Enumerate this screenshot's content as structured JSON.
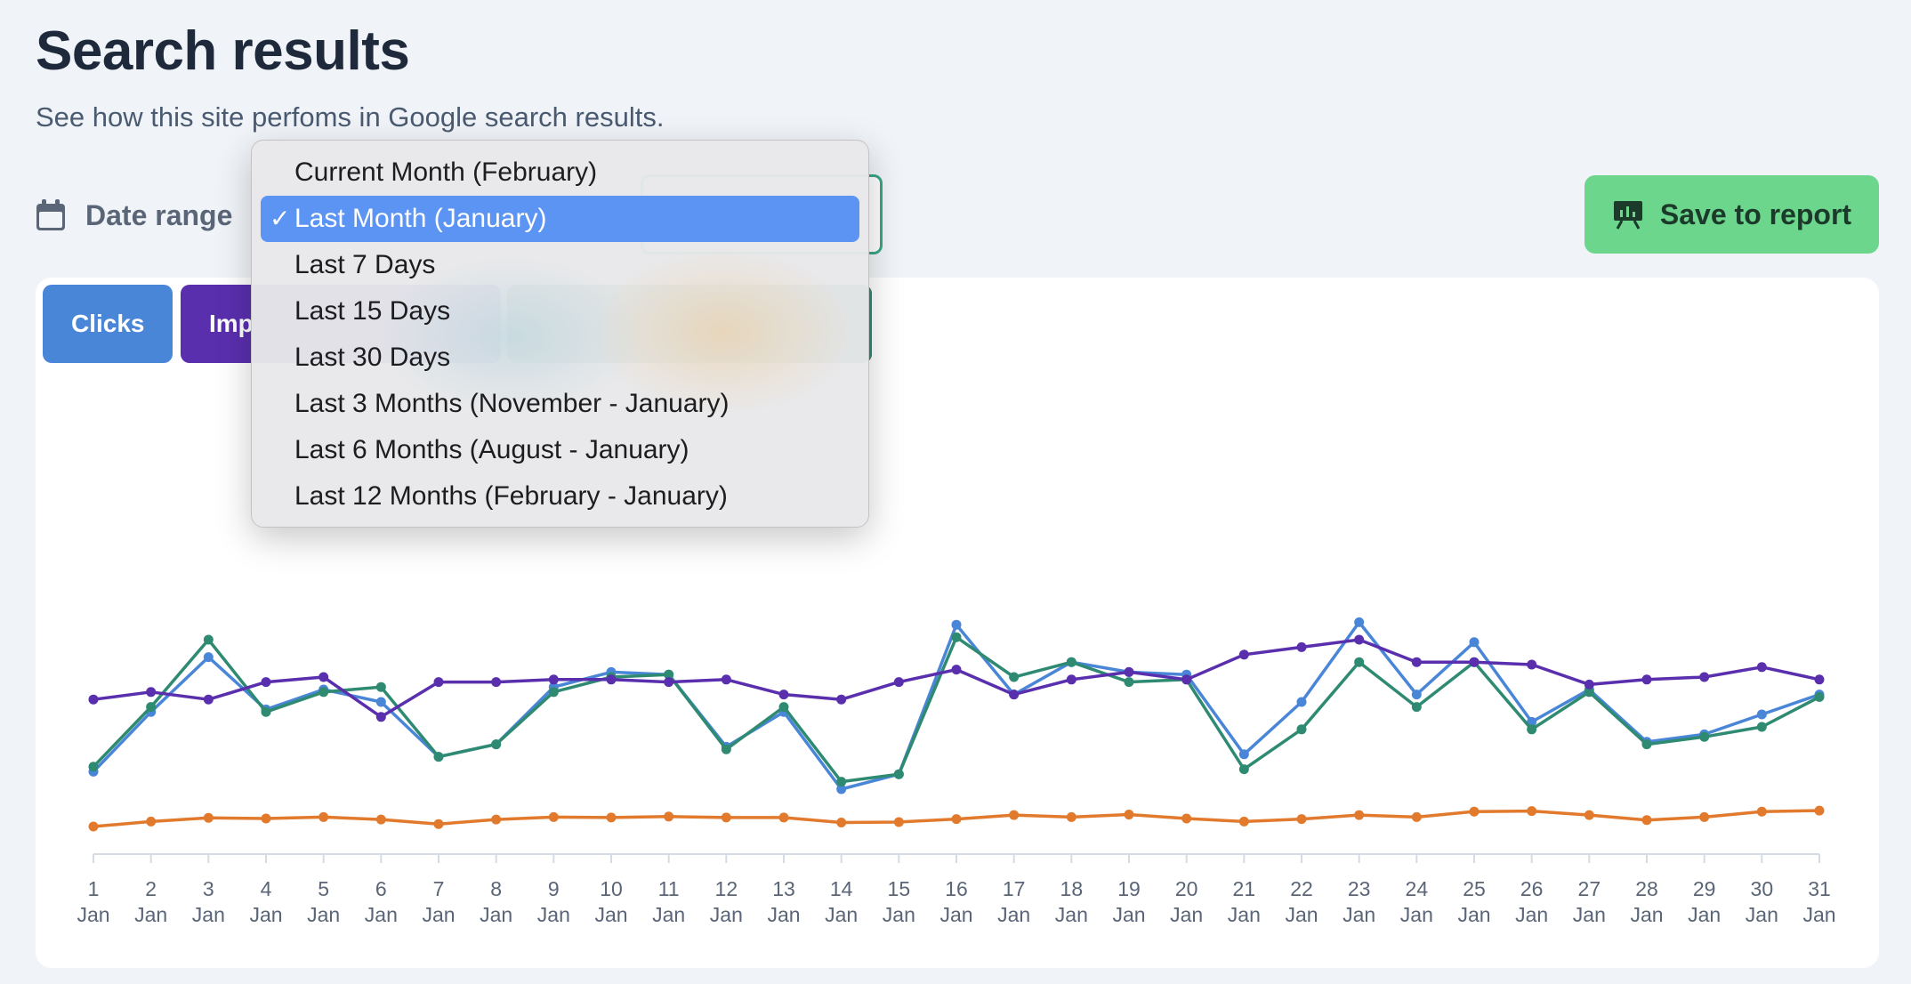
{
  "header": {
    "title": "Search results",
    "subtitle": "See how this site perfoms in Google search results."
  },
  "date_range": {
    "label": "Date range",
    "icon": "calendar-icon",
    "options": [
      "Current Month (February)",
      "Last Month (January)",
      "Last 7 Days",
      "Last 15 Days",
      "Last 30 Days",
      "Last 3 Months (November - January)",
      "Last 6 Months (August - January)",
      "Last 12 Months (February - January)"
    ],
    "selected_index": 1,
    "check_mark": "✓"
  },
  "save_button": {
    "label": "Save to report",
    "icon": "presentation-chart-icon",
    "color": "#6cd68c"
  },
  "metric_tabs": [
    {
      "label": "Clicks",
      "color": "#4a86d8"
    },
    {
      "label": "Imp",
      "color": "#5a2fae"
    },
    {
      "label": "",
      "color": "#2f8a72"
    },
    {
      "label": "",
      "color": "#e27a2d"
    }
  ],
  "chart_data": {
    "type": "line",
    "x": [
      "1 Jan",
      "2 Jan",
      "3 Jan",
      "4 Jan",
      "5 Jan",
      "6 Jan",
      "7 Jan",
      "8 Jan",
      "9 Jan",
      "10 Jan",
      "11 Jan",
      "12 Jan",
      "13 Jan",
      "14 Jan",
      "15 Jan",
      "16 Jan",
      "17 Jan",
      "18 Jan",
      "19 Jan",
      "20 Jan",
      "21 Jan",
      "22 Jan",
      "23 Jan",
      "24 Jan",
      "25 Jan",
      "26 Jan",
      "27 Jan",
      "28 Jan",
      "29 Jan",
      "30 Jan",
      "31 Jan"
    ],
    "tick_labels": [
      [
        "1",
        "Jan"
      ],
      [
        "2",
        "Jan"
      ],
      [
        "3",
        "Jan"
      ],
      [
        "4",
        "Jan"
      ],
      [
        "5",
        "Jan"
      ],
      [
        "6",
        "Jan"
      ],
      [
        "7",
        "Jan"
      ],
      [
        "8",
        "Jan"
      ],
      [
        "9",
        "Jan"
      ],
      [
        "10",
        "Jan"
      ],
      [
        "11",
        "Jan"
      ],
      [
        "12",
        "Jan"
      ],
      [
        "13",
        "Jan"
      ],
      [
        "14",
        "Jan"
      ],
      [
        "15",
        "Jan"
      ],
      [
        "16",
        "Jan"
      ],
      [
        "17",
        "Jan"
      ],
      [
        "18",
        "Jan"
      ],
      [
        "19",
        "Jan"
      ],
      [
        "20",
        "Jan"
      ],
      [
        "21",
        "Jan"
      ],
      [
        "22",
        "Jan"
      ],
      [
        "23",
        "Jan"
      ],
      [
        "24",
        "Jan"
      ],
      [
        "25",
        "Jan"
      ],
      [
        "26",
        "Jan"
      ],
      [
        "27",
        "Jan"
      ],
      [
        "28",
        "Jan"
      ],
      [
        "29",
        "Jan"
      ],
      [
        "30",
        "Jan"
      ],
      [
        "31",
        "Jan"
      ]
    ],
    "ylim": [
      0,
      100
    ],
    "grid": false,
    "series": [
      {
        "color": "#4a86d8",
        "values": [
          32,
          56,
          78,
          57,
          65,
          60,
          38,
          43,
          66,
          72,
          71,
          42,
          56,
          25,
          31,
          91,
          63,
          76,
          72,
          71,
          39,
          60,
          92,
          63,
          84,
          52,
          65,
          44,
          47,
          55,
          63
        ]
      },
      {
        "color": "#2f8a72",
        "values": [
          34,
          58,
          85,
          56,
          64,
          66,
          38,
          43,
          64,
          70,
          71,
          41,
          58,
          28,
          31,
          86,
          70,
          76,
          68,
          69,
          33,
          49,
          76,
          58,
          76,
          49,
          64,
          43,
          46,
          50,
          62
        ]
      },
      {
        "color": "#5a2fae",
        "values": [
          61,
          64,
          61,
          68,
          70,
          54,
          68,
          68,
          69,
          69,
          68,
          69,
          63,
          61,
          68,
          73,
          63,
          69,
          72,
          69,
          79,
          82,
          85,
          76,
          76,
          75,
          67,
          69,
          70,
          74,
          69
        ]
      },
      {
        "color": "#e27a2d",
        "values": [
          10,
          12,
          13.5,
          13.2,
          13.8,
          12.8,
          11,
          12.8,
          13.8,
          13.6,
          14,
          13.6,
          13.6,
          11.6,
          11.8,
          13,
          14.6,
          13.8,
          14.8,
          13.2,
          12,
          13,
          14.6,
          13.8,
          16,
          16.2,
          14.6,
          12.6,
          13.8,
          16,
          16.4
        ]
      }
    ]
  }
}
